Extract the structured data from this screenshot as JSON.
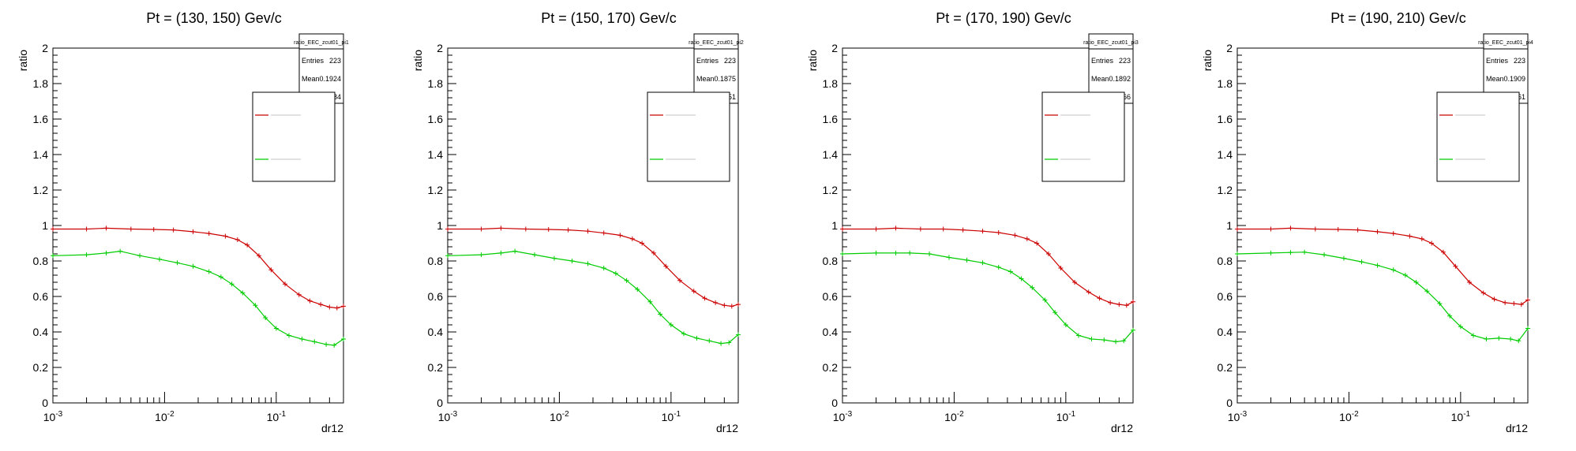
{
  "colors": {
    "series_red": "#cc0000",
    "series_green": "#00cc00",
    "axis": "#000000",
    "background": "#ffffff"
  },
  "chart_data": [
    {
      "type": "line",
      "title": "Pt = (130, 150) Gev/c",
      "xlabel": "dr12",
      "ylabel": "ratio",
      "xscale": "log",
      "xlim": [
        0.001,
        0.4
      ],
      "ylim": [
        0,
        2
      ],
      "y_ticks": [
        "0",
        "0.2",
        "0.4",
        "0.6",
        "0.8",
        "1",
        "1.2",
        "1.4",
        "1.6",
        "1.8",
        "2"
      ],
      "x_tick_labels": [
        {
          "base": "10",
          "exp": "-3"
        },
        {
          "base": "10",
          "exp": "-2"
        },
        {
          "base": "10",
          "exp": "-1"
        }
      ],
      "stats_box": {
        "name": "ratio_EEC_zcut01_pi1",
        "rows": [
          {
            "label": "Entries",
            "value": "223"
          },
          {
            "label": "Mean",
            "value": "0.1924"
          },
          {
            "label": "",
            "value": "0.1684"
          }
        ]
      },
      "legend": {
        "placement": "top-right"
      },
      "series": [
        {
          "color": "red",
          "x": [
            0.001,
            0.002,
            0.003,
            0.005,
            0.008,
            0.012,
            0.018,
            0.025,
            0.035,
            0.045,
            0.055,
            0.07,
            0.09,
            0.12,
            0.16,
            0.2,
            0.25,
            0.3,
            0.35,
            0.4
          ],
          "y": [
            0.98,
            0.98,
            0.985,
            0.98,
            0.978,
            0.975,
            0.965,
            0.955,
            0.94,
            0.92,
            0.89,
            0.83,
            0.75,
            0.67,
            0.61,
            0.575,
            0.555,
            0.54,
            0.535,
            0.545
          ]
        },
        {
          "color": "green",
          "x": [
            0.001,
            0.002,
            0.003,
            0.004,
            0.006,
            0.009,
            0.013,
            0.018,
            0.025,
            0.032,
            0.04,
            0.05,
            0.065,
            0.08,
            0.1,
            0.13,
            0.17,
            0.22,
            0.28,
            0.33,
            0.4
          ],
          "y": [
            0.83,
            0.835,
            0.845,
            0.855,
            0.83,
            0.81,
            0.79,
            0.77,
            0.74,
            0.71,
            0.67,
            0.62,
            0.55,
            0.48,
            0.42,
            0.38,
            0.36,
            0.345,
            0.33,
            0.325,
            0.36
          ]
        }
      ]
    },
    {
      "type": "line",
      "title": "Pt = (150, 170) Gev/c",
      "xlabel": "dr12",
      "ylabel": "ratio",
      "xscale": "log",
      "xlim": [
        0.001,
        0.4
      ],
      "ylim": [
        0,
        2
      ],
      "y_ticks": [
        "0",
        "0.2",
        "0.4",
        "0.6",
        "0.8",
        "1",
        "1.2",
        "1.4",
        "1.6",
        "1.8",
        "2"
      ],
      "x_tick_labels": [
        {
          "base": "10",
          "exp": "-3"
        },
        {
          "base": "10",
          "exp": "-2"
        },
        {
          "base": "10",
          "exp": "-1"
        }
      ],
      "stats_box": {
        "name": "ratio_EEC_zcut01_pi2",
        "rows": [
          {
            "label": "Entries",
            "value": "223"
          },
          {
            "label": "Mean",
            "value": "0.1875"
          },
          {
            "label": "",
            "value": "0.1651"
          }
        ]
      },
      "legend": {
        "placement": "top-right"
      },
      "series": [
        {
          "color": "red",
          "x": [
            0.001,
            0.002,
            0.003,
            0.005,
            0.008,
            0.012,
            0.018,
            0.025,
            0.035,
            0.045,
            0.055,
            0.07,
            0.09,
            0.12,
            0.16,
            0.2,
            0.25,
            0.3,
            0.35,
            0.4
          ],
          "y": [
            0.98,
            0.98,
            0.985,
            0.98,
            0.978,
            0.975,
            0.968,
            0.958,
            0.945,
            0.925,
            0.9,
            0.845,
            0.77,
            0.69,
            0.63,
            0.59,
            0.565,
            0.55,
            0.545,
            0.555
          ]
        },
        {
          "color": "green",
          "x": [
            0.001,
            0.002,
            0.003,
            0.004,
            0.006,
            0.009,
            0.013,
            0.018,
            0.025,
            0.032,
            0.04,
            0.05,
            0.065,
            0.08,
            0.1,
            0.13,
            0.17,
            0.22,
            0.28,
            0.33,
            0.4
          ],
          "y": [
            0.83,
            0.835,
            0.845,
            0.855,
            0.835,
            0.815,
            0.8,
            0.785,
            0.76,
            0.73,
            0.69,
            0.64,
            0.57,
            0.5,
            0.44,
            0.39,
            0.365,
            0.35,
            0.335,
            0.34,
            0.385
          ]
        }
      ]
    },
    {
      "type": "line",
      "title": "Pt = (170, 190) Gev/c",
      "xlabel": "dr12",
      "ylabel": "ratio",
      "xscale": "log",
      "xlim": [
        0.001,
        0.4
      ],
      "ylim": [
        0,
        2
      ],
      "y_ticks": [
        "0",
        "0.2",
        "0.4",
        "0.6",
        "0.8",
        "1",
        "1.2",
        "1.4",
        "1.6",
        "1.8",
        "2"
      ],
      "x_tick_labels": [
        {
          "base": "10",
          "exp": "-3"
        },
        {
          "base": "10",
          "exp": "-2"
        },
        {
          "base": "10",
          "exp": "-1"
        }
      ],
      "stats_box": {
        "name": "ratio_EEC_zcut01_pi3",
        "rows": [
          {
            "label": "Entries",
            "value": "223"
          },
          {
            "label": "Mean",
            "value": "0.1892"
          },
          {
            "label": "",
            "value": "0.166"
          }
        ]
      },
      "legend": {
        "placement": "top-right"
      },
      "series": [
        {
          "color": "red",
          "x": [
            0.001,
            0.002,
            0.003,
            0.005,
            0.008,
            0.012,
            0.018,
            0.025,
            0.035,
            0.045,
            0.055,
            0.07,
            0.09,
            0.12,
            0.16,
            0.2,
            0.25,
            0.3,
            0.35,
            0.4
          ],
          "y": [
            0.98,
            0.98,
            0.985,
            0.98,
            0.98,
            0.975,
            0.968,
            0.96,
            0.945,
            0.925,
            0.9,
            0.84,
            0.76,
            0.68,
            0.625,
            0.59,
            0.565,
            0.555,
            0.55,
            0.57
          ]
        },
        {
          "color": "green",
          "x": [
            0.001,
            0.002,
            0.003,
            0.004,
            0.006,
            0.009,
            0.013,
            0.018,
            0.025,
            0.032,
            0.04,
            0.05,
            0.065,
            0.08,
            0.1,
            0.13,
            0.17,
            0.22,
            0.28,
            0.33,
            0.4
          ],
          "y": [
            0.84,
            0.845,
            0.845,
            0.845,
            0.84,
            0.82,
            0.805,
            0.79,
            0.765,
            0.74,
            0.7,
            0.65,
            0.58,
            0.51,
            0.44,
            0.38,
            0.36,
            0.355,
            0.345,
            0.35,
            0.41
          ]
        }
      ]
    },
    {
      "type": "line",
      "title": "Pt = (190, 210) Gev/c",
      "xlabel": "dr12",
      "ylabel": "ratio",
      "xscale": "log",
      "xlim": [
        0.001,
        0.4
      ],
      "ylim": [
        0,
        2
      ],
      "y_ticks": [
        "0",
        "0.2",
        "0.4",
        "0.6",
        "0.8",
        "1",
        "1.2",
        "1.4",
        "1.6",
        "1.8",
        "2"
      ],
      "x_tick_labels": [
        {
          "base": "10",
          "exp": "-3"
        },
        {
          "base": "10",
          "exp": "-2"
        },
        {
          "base": "10",
          "exp": "-1"
        }
      ],
      "stats_box": {
        "name": "ratio_EEC_zcut01_pi4",
        "rows": [
          {
            "label": "Entries",
            "value": "223"
          },
          {
            "label": "Mean",
            "value": "0.1909"
          },
          {
            "label": "",
            "value": "0.1661"
          }
        ]
      },
      "legend": {
        "placement": "top-right"
      },
      "series": [
        {
          "color": "red",
          "x": [
            0.001,
            0.002,
            0.003,
            0.005,
            0.008,
            0.012,
            0.018,
            0.025,
            0.035,
            0.045,
            0.055,
            0.07,
            0.09,
            0.12,
            0.16,
            0.2,
            0.25,
            0.3,
            0.35,
            0.4
          ],
          "y": [
            0.98,
            0.98,
            0.985,
            0.98,
            0.978,
            0.975,
            0.965,
            0.955,
            0.94,
            0.925,
            0.9,
            0.85,
            0.77,
            0.68,
            0.62,
            0.585,
            0.565,
            0.56,
            0.555,
            0.58
          ]
        },
        {
          "color": "green",
          "x": [
            0.001,
            0.002,
            0.003,
            0.004,
            0.006,
            0.009,
            0.013,
            0.018,
            0.025,
            0.032,
            0.04,
            0.05,
            0.065,
            0.08,
            0.1,
            0.13,
            0.17,
            0.22,
            0.28,
            0.33,
            0.4
          ],
          "y": [
            0.84,
            0.845,
            0.848,
            0.85,
            0.835,
            0.815,
            0.795,
            0.775,
            0.75,
            0.72,
            0.68,
            0.63,
            0.56,
            0.49,
            0.43,
            0.38,
            0.36,
            0.365,
            0.36,
            0.35,
            0.42
          ]
        }
      ]
    }
  ]
}
